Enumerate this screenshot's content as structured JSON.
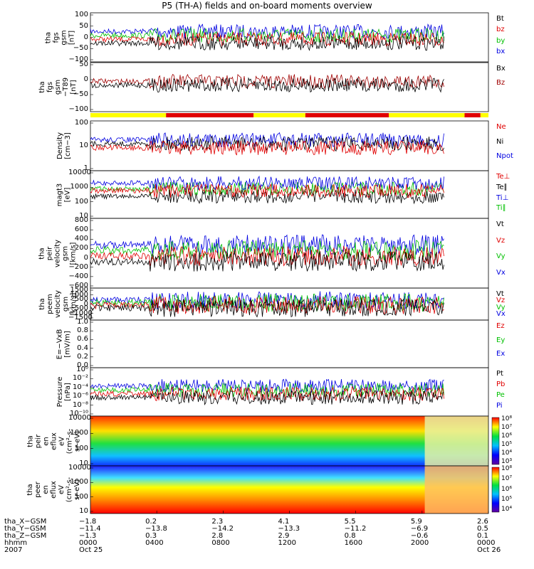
{
  "title": "P5 (TH-A) fields and on-board moments overview",
  "chart_data": {
    "type": "line",
    "panels": [
      {
        "id": "fgs",
        "ylabel": [
          "tha",
          "fgs",
          "gsm",
          "[nT]"
        ],
        "yticks": [
          "100",
          "50",
          "0",
          "−50",
          "−100"
        ],
        "legend": [
          {
            "name": "Bt",
            "color": "#000000"
          },
          {
            "name": "bz",
            "color": "#e00000"
          },
          {
            "name": "by",
            "color": "#00c000"
          },
          {
            "name": "bx",
            "color": "#0000e0"
          }
        ]
      },
      {
        "id": "bz",
        "ylabel": [
          "tha",
          "fgs",
          "gsm",
          "−T89",
          "[nT]"
        ],
        "yticks": [
          "50",
          "0",
          "−50",
          "−100"
        ],
        "legend": [
          {
            "name": "Bx",
            "color": "#000000"
          },
          {
            "name": "Bz",
            "color": "#a00000"
          }
        ]
      },
      {
        "id": "density",
        "ylabel": [
          "Density",
          "[cm−3]"
        ],
        "yticks": [
          "100",
          "10",
          "1"
        ],
        "legend": [
          {
            "name": "Ne",
            "color": "#e00000"
          },
          {
            "name": "Ni",
            "color": "#000000"
          },
          {
            "name": "Npot",
            "color": "#0000e0"
          }
        ]
      },
      {
        "id": "temp",
        "ylabel": [
          "magt3",
          "[eV]"
        ],
        "yticks": [
          "10000",
          "1000",
          "100",
          "10"
        ],
        "legend": [
          {
            "name": "Te⊥",
            "color": "#e00000"
          },
          {
            "name": "Te∥",
            "color": "#000000"
          },
          {
            "name": "Ti⊥",
            "color": "#0000e0"
          },
          {
            "name": "Ti∥",
            "color": "#00c000"
          }
        ]
      },
      {
        "id": "peir",
        "ylabel": [
          "tha",
          "peir",
          "velocity",
          "gsm",
          "[km/s]"
        ],
        "yticks": [
          "800",
          "600",
          "400",
          "200",
          "0",
          "−200",
          "−400",
          "−600"
        ],
        "legend": [
          {
            "name": "Vt",
            "color": "#000000"
          },
          {
            "name": "Vz",
            "color": "#e00000"
          },
          {
            "name": "Vy",
            "color": "#00c000"
          },
          {
            "name": "Vx",
            "color": "#0000e0"
          }
        ]
      },
      {
        "id": "peem",
        "ylabel": [
          "tha",
          "peem",
          "velocity",
          "gsm",
          "[km/s]"
        ],
        "yticks": [
          "1500",
          "1000",
          "500",
          "0",
          "−500",
          "−1000",
          "−1500"
        ],
        "legend": [
          {
            "name": "Vt",
            "color": "#000000"
          },
          {
            "name": "Vz",
            "color": "#e00000"
          },
          {
            "name": "Vy",
            "color": "#00c000"
          },
          {
            "name": "Vx",
            "color": "#0000e0"
          }
        ]
      },
      {
        "id": "efield",
        "ylabel": [
          "E=−VxB",
          "[mV/m]"
        ],
        "yticks": [
          "1.0",
          "0.8",
          "0.6",
          "0.4",
          "0.2",
          "0.0"
        ],
        "legend": [
          {
            "name": "Ez",
            "color": "#e00000"
          },
          {
            "name": "Ey",
            "color": "#00c000"
          },
          {
            "name": "Ex",
            "color": "#0000e0"
          }
        ]
      },
      {
        "id": "pressure",
        "ylabel": [
          "Pressure",
          "[nPa]"
        ],
        "yticks": [
          "10⁰",
          "10⁻²",
          "10⁻⁴",
          "10⁻⁶",
          "10⁻⁸",
          "10⁻¹⁰"
        ],
        "legend": [
          {
            "name": "Pt",
            "color": "#000000"
          },
          {
            "name": "Pb",
            "color": "#e00000"
          },
          {
            "name": "Pe",
            "color": "#00c000"
          },
          {
            "name": "Pi",
            "color": "#0000e0"
          }
        ]
      },
      {
        "id": "peir_spec",
        "ylabel": [
          "tha",
          "peir",
          "en",
          "eflux",
          "eV",
          "(cm²-s-",
          "sr-eV)"
        ],
        "yticks": [
          "10000",
          "1000",
          "100",
          "10"
        ],
        "colorbar": [
          "10⁸",
          "10⁷",
          "10⁶",
          "10⁵",
          "10⁴",
          "10³"
        ]
      },
      {
        "id": "peer_spec",
        "ylabel": [
          "tha",
          "peer",
          "en",
          "eflux",
          "eV",
          "(cm²-s-",
          "sr-eV)"
        ],
        "yticks": [
          "10000",
          "1000",
          "100",
          "10"
        ],
        "colorbar": [
          "10⁸",
          "10⁷",
          "10⁶",
          "10⁵",
          "10⁴"
        ]
      }
    ],
    "xaxis": {
      "rows": [
        {
          "label": "tha_X−GSM",
          "values": [
            "−1.8",
            "0.2",
            "2.3",
            "4.1",
            "5.5",
            "5.9",
            "2.6"
          ]
        },
        {
          "label": "tha_Y−GSM",
          "values": [
            "−11.4",
            "−13.8",
            "−14.2",
            "−13.3",
            "−11.2",
            "−6.9",
            "0.5"
          ]
        },
        {
          "label": "tha_Z−GSM",
          "values": [
            "−1.3",
            "0.3",
            "2.8",
            "2.9",
            "0.8",
            "−0.6",
            "0.1"
          ]
        },
        {
          "label": "hhmm",
          "values": [
            "0000",
            "0400",
            "0800",
            "1200",
            "1600",
            "2000",
            "0000"
          ]
        },
        {
          "label": "2007",
          "values": [
            "Oct 25",
            "",
            "",
            "",
            "",
            "",
            "Oct 26"
          ]
        }
      ]
    }
  }
}
